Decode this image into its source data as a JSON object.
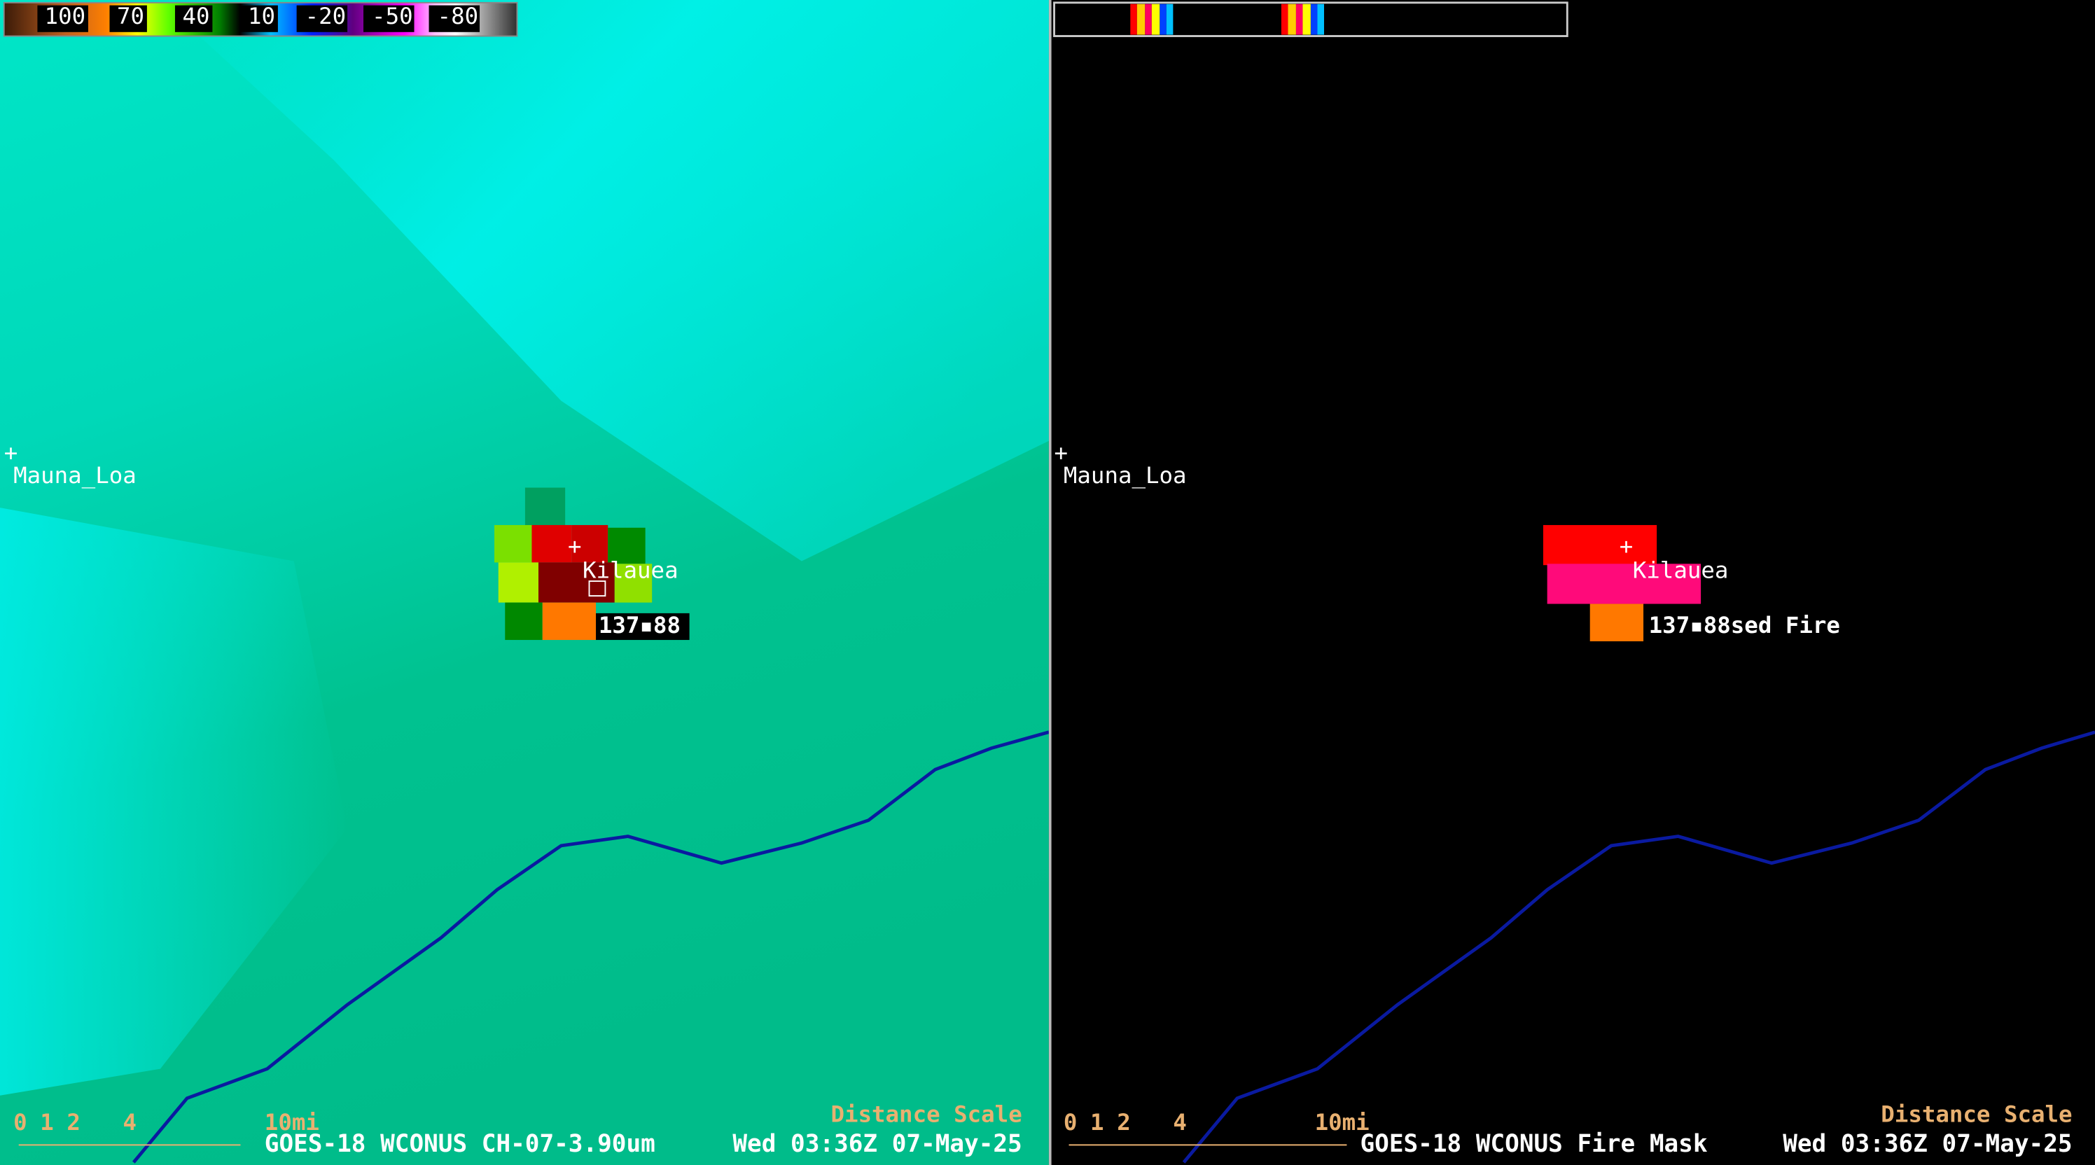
{
  "panels": [
    {
      "colorbar_labels": [
        "100",
        "70",
        "40",
        "10",
        "-20",
        "-50",
        "-80"
      ],
      "places": [
        "Mauna_Loa",
        "Kilauea"
      ],
      "fire_label": "137▪88",
      "scale_labels": [
        "0",
        "1",
        "2",
        "4",
        "10mi"
      ],
      "scale_title": "Distance Scale",
      "product": "GOES-18 WCONUS CH-07-3.90um",
      "time": "Wed 03:36Z 07-May-25"
    },
    {
      "places": [
        "Mauna_Loa",
        "Kilauea"
      ],
      "fire_label": "137▪88sed Fire",
      "scale_labels": [
        "0",
        "1",
        "2",
        "4",
        "10mi"
      ],
      "scale_title": "Distance Scale",
      "product": "GOES-18 WCONUS Fire Mask",
      "time": "Wed 03:36Z 07-May-25"
    }
  ]
}
